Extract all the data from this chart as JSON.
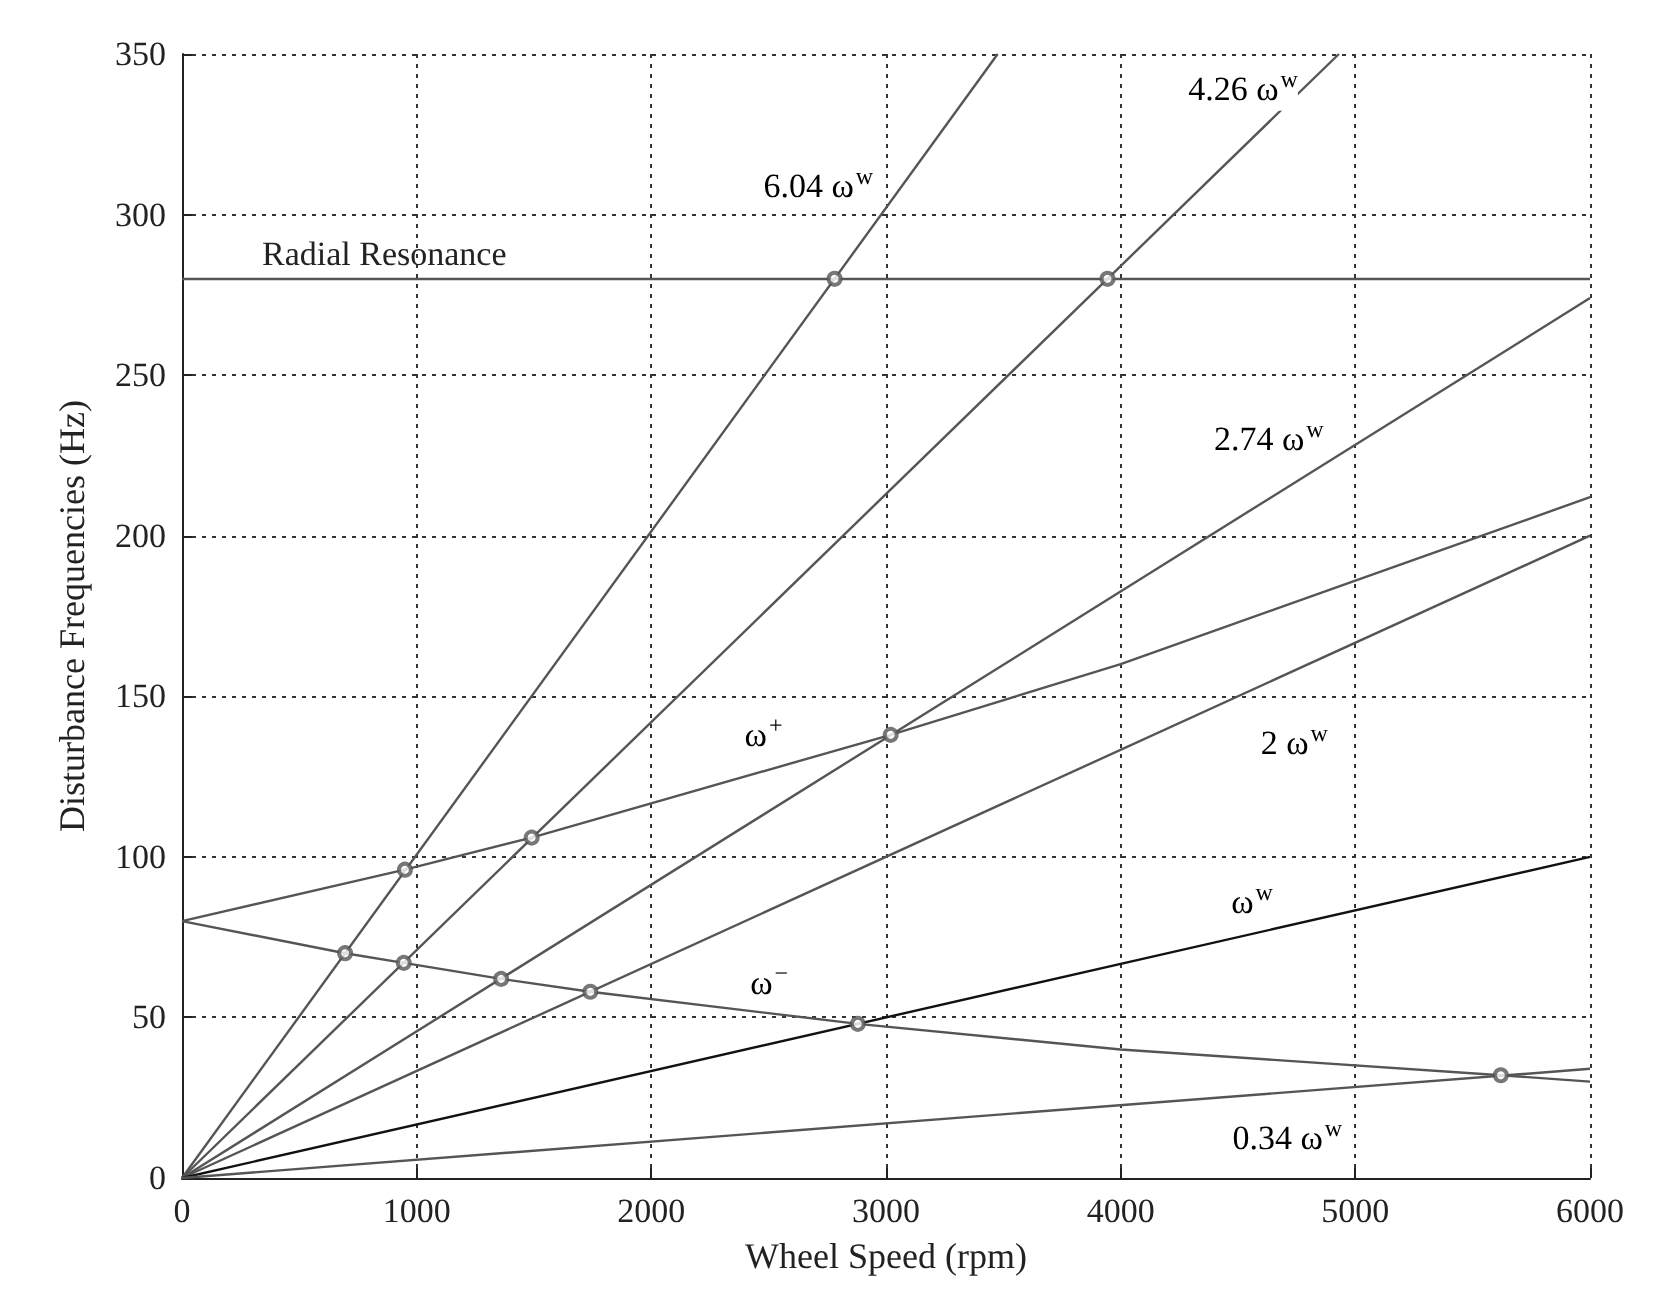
{
  "chart_data": {
    "type": "line",
    "xlabel": "Wheel Speed (rpm)",
    "ylabel": "Disturbance Frequencies (Hz)",
    "xlim": [
      0,
      6000
    ],
    "ylim": [
      0,
      350
    ],
    "xticks": [
      0,
      1000,
      2000,
      3000,
      4000,
      5000,
      6000
    ],
    "yticks": [
      0,
      50,
      100,
      150,
      200,
      250,
      300,
      350
    ],
    "grid": true,
    "legend": false,
    "marker": "none",
    "line_style": "solid",
    "series": [
      {
        "name": "6.04 ω$^{w}$",
        "color": "#555555",
        "x": [
          0,
          3476
        ],
        "values": [
          0,
          350
        ]
      },
      {
        "name": "4.26 ω$^{w}$",
        "color": "#555555",
        "x": [
          0,
          4930
        ],
        "values": [
          0,
          350
        ]
      },
      {
        "name": "2.74 ω$^{w}$",
        "color": "#555555",
        "x": [
          0,
          6000
        ],
        "values": [
          0,
          274
        ]
      },
      {
        "name": "2 ω$^{w}$",
        "color": "#555555",
        "x": [
          0,
          6000
        ],
        "values": [
          0,
          200
        ]
      },
      {
        "name": "ω$^{w}$",
        "color": "#111111",
        "x": [
          0,
          6000
        ],
        "values": [
          0,
          100
        ]
      },
      {
        "name": "0.34 ω$^{w}$",
        "color": "#555555",
        "x": [
          0,
          6000
        ],
        "values": [
          0,
          34
        ]
      },
      {
        "name": "ω$^{+}$",
        "color": "#555555",
        "x": [
          0,
          950,
          1490,
          3020,
          4000,
          5000,
          6000
        ],
        "values": [
          80,
          96,
          106,
          138,
          160,
          186,
          212
        ]
      },
      {
        "name": "ω$^{−}$",
        "color": "#555555",
        "x": [
          0,
          695,
          945,
          1360,
          1740,
          2880,
          4000,
          5620,
          6000
        ],
        "values": [
          80,
          70,
          67,
          62,
          58,
          48,
          40,
          32,
          30
        ]
      },
      {
        "type": "scatter",
        "marker": "circle",
        "color": "#555555",
        "x": [
          2781,
          3944,
          950,
          1490,
          3020,
          695,
          945,
          1360,
          1740,
          2880,
          5620
        ],
        "values": [
          280,
          280,
          96,
          106,
          138,
          70,
          67,
          62,
          58,
          48,
          32
        ]
      }
    ],
    "ref_lines": [
      {
        "axis": "y",
        "value": 280,
        "label": "Radial Resonance",
        "color": "#555555",
        "line_style": "solid"
      }
    ]
  }
}
